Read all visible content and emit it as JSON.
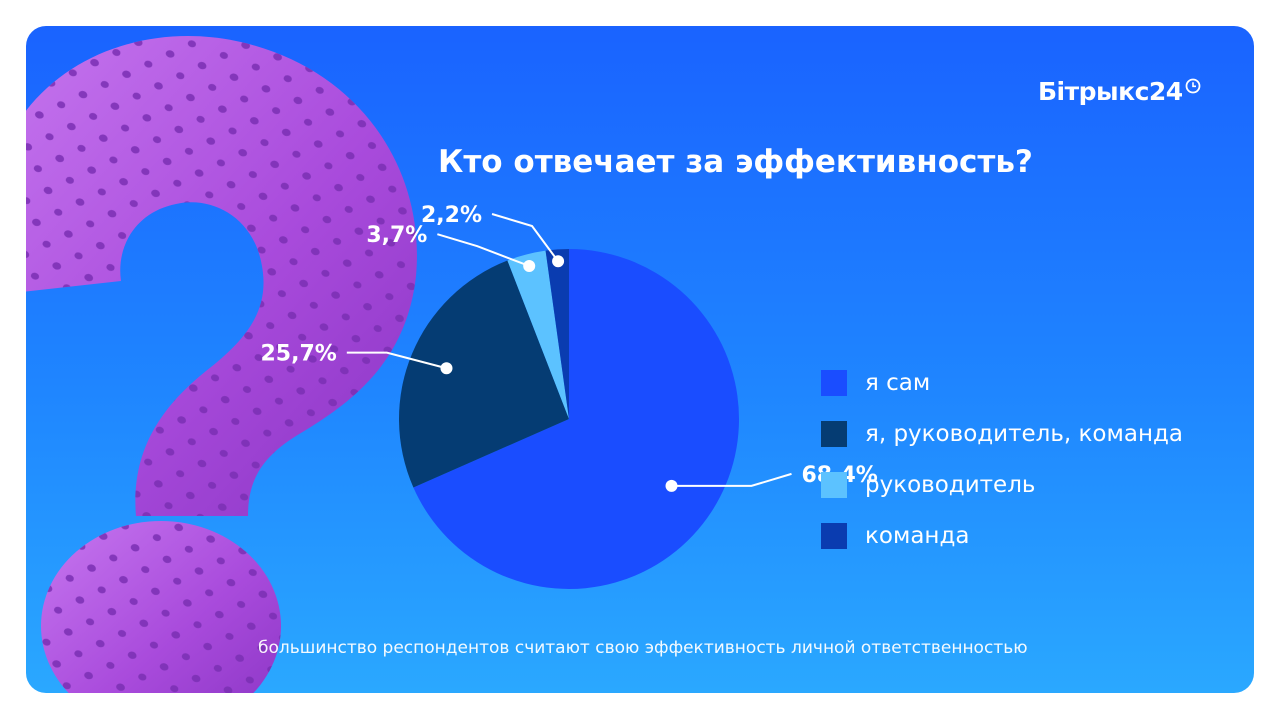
{
  "brand": {
    "name": "Бітрыкс24"
  },
  "chart_data": {
    "type": "pie",
    "title": "Кто отвечает за эффективность?",
    "slices": [
      {
        "label": "я сам",
        "value": 68.4,
        "value_label": "68,4%",
        "color": "#1a4dff"
      },
      {
        "label": "я, руководитель, команда",
        "value": 25.7,
        "value_label": "25,7%",
        "color": "#053c73"
      },
      {
        "label": "руководитель",
        "value": 3.7,
        "value_label": "3,7%",
        "color": "#5cc2ff"
      },
      {
        "label": "команда",
        "value": 2.2,
        "value_label": "2,2%",
        "color": "#0a3cb0"
      }
    ],
    "legend_position": "right"
  },
  "footnote": "большинство респондентов считают свою эффективность личной ответственностью",
  "decoration": {
    "icon": "question-mark-icon",
    "color": "#b455e0"
  }
}
